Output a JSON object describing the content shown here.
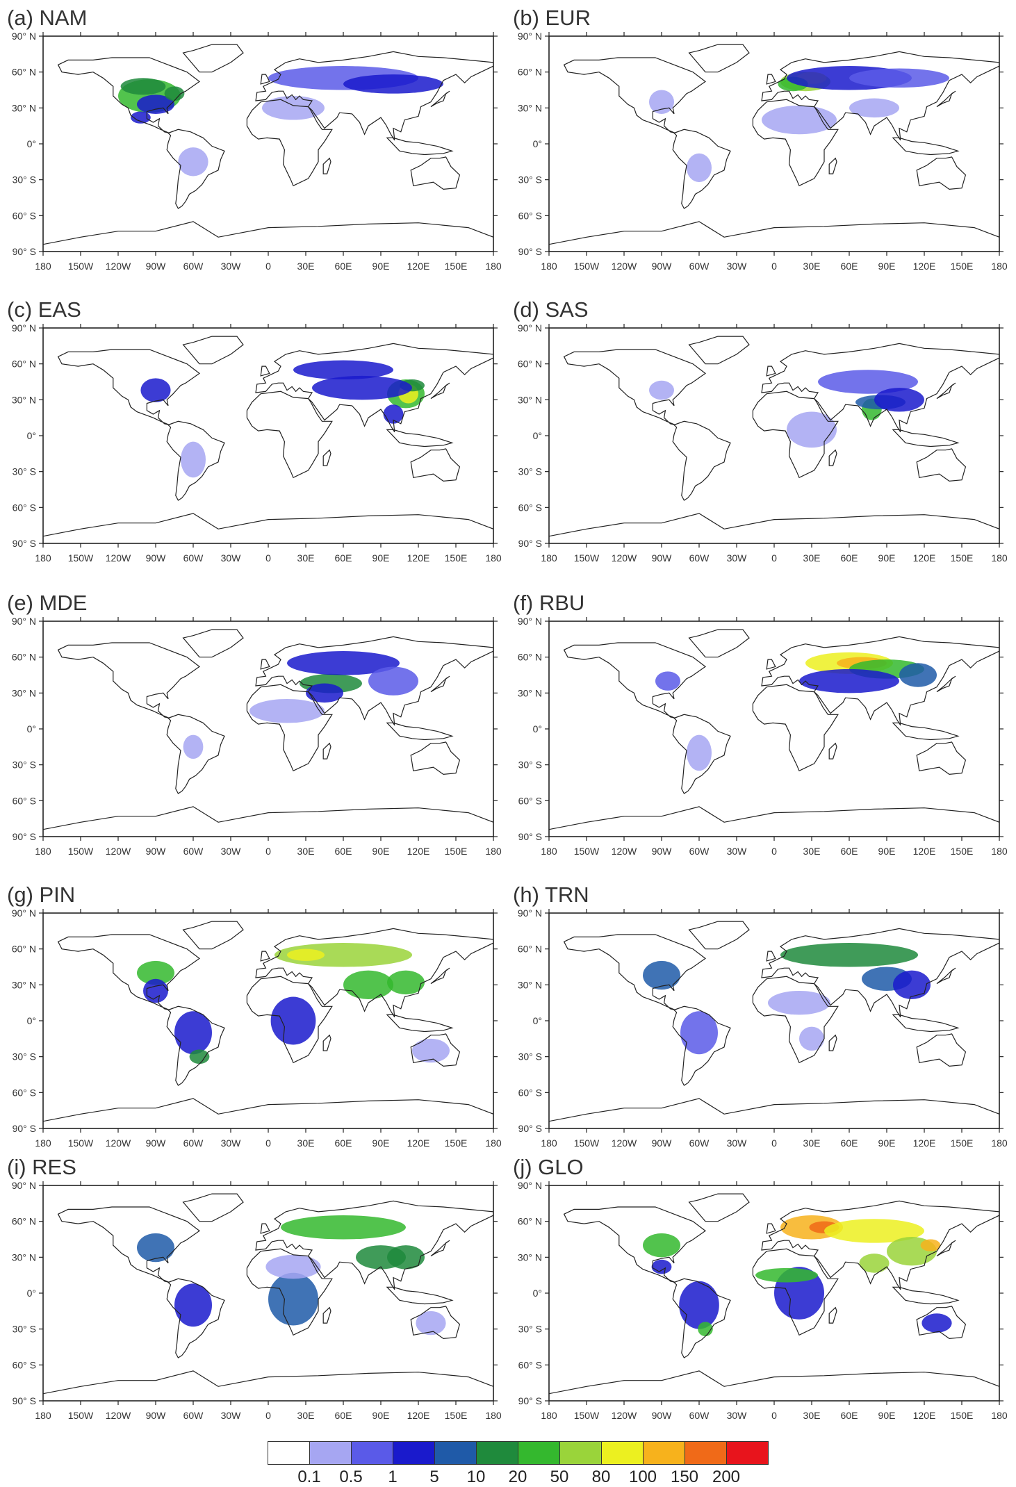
{
  "panels": [
    {
      "label": "(a) NAM"
    },
    {
      "label": "(b) EUR"
    },
    {
      "label": "(c) EAS"
    },
    {
      "label": "(d) SAS"
    },
    {
      "label": "(e) MDE"
    },
    {
      "label": "(f) RBU"
    },
    {
      "label": "(g) PIN"
    },
    {
      "label": "(h) TRN"
    },
    {
      "label": "(i) RES"
    },
    {
      "label": "(j) GLO"
    }
  ],
  "axes": {
    "lat_ticks": [
      "90° N",
      "60° N",
      "30° N",
      "0°",
      "30° S",
      "60° S",
      "90° S"
    ],
    "lon_ticks": [
      "180",
      "150W",
      "120W",
      "90W",
      "60W",
      "30W",
      "0",
      "30E",
      "60E",
      "90E",
      "120E",
      "150E",
      "180"
    ]
  },
  "colorbar": {
    "levels": [
      "0.1",
      "0.5",
      "1",
      "5",
      "10",
      "20",
      "50",
      "80",
      "100",
      "150",
      "200"
    ],
    "colors": [
      "#ffffff",
      "#a6a6f2",
      "#5a5ae8",
      "#1a1acc",
      "#1f5aa8",
      "#1f8a3c",
      "#34b82e",
      "#9ad43a",
      "#ecf020",
      "#f7b21c",
      "#f06a18",
      "#e8141c"
    ]
  }
}
